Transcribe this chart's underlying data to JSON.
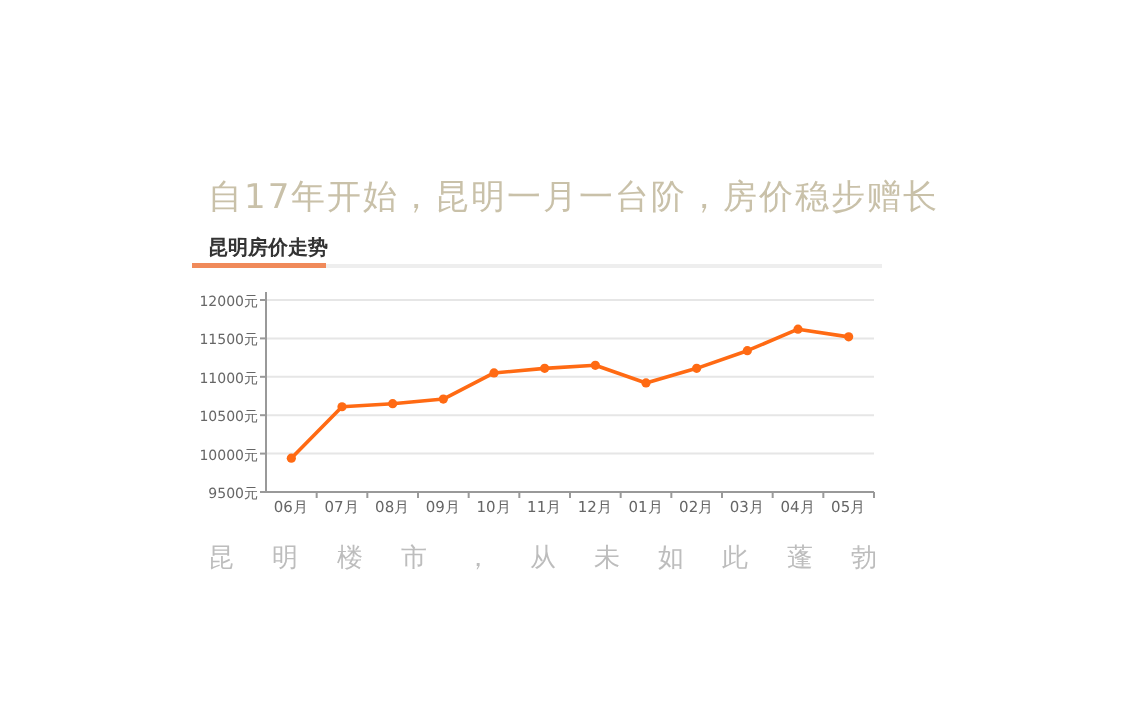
{
  "chart_data": {
    "type": "line",
    "title": "自17年开始，昆明一月一台阶，房价稳步赠长",
    "subtitle": "昆明房价走势",
    "annotations": [
      "昆 明 楼 市 ， 从 未 如 此 蓬 勃"
    ],
    "categories": [
      "06月",
      "07月",
      "08月",
      "09月",
      "10月",
      "11月",
      "12月",
      "01月",
      "02月",
      "03月",
      "04月",
      "05月"
    ],
    "series": [
      {
        "color": "#ff6a13",
        "values": [
          9940,
          10610,
          10650,
          10710,
          11050,
          11110,
          11150,
          10920,
          11110,
          11340,
          11620,
          11520
        ]
      }
    ],
    "ylim": [
      9500,
      12000
    ],
    "yticks": [
      {
        "value": 9500,
        "label": "9500元"
      },
      {
        "value": 10000,
        "label": "10000元"
      },
      {
        "value": 10500,
        "label": "10500元"
      },
      {
        "value": 11000,
        "label": "11000元"
      },
      {
        "value": 11500,
        "label": "11500元"
      },
      {
        "value": 12000,
        "label": "12000元"
      }
    ],
    "grid": "y",
    "marker": "circle",
    "line_style": "solid"
  }
}
